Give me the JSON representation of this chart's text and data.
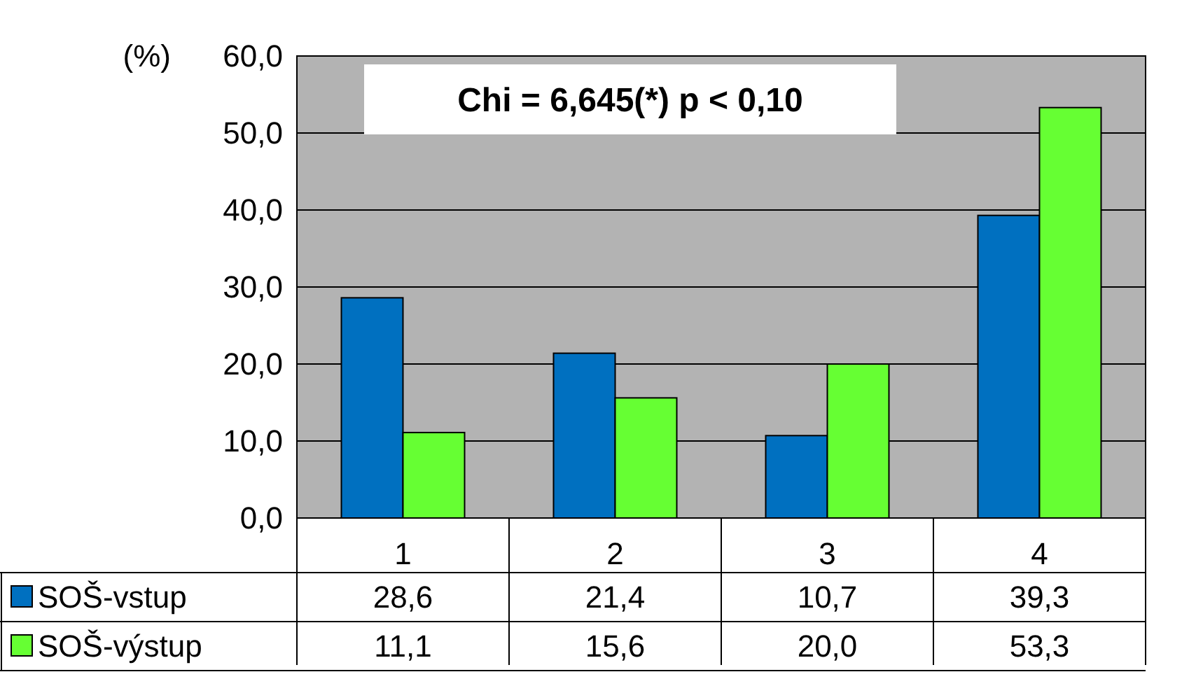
{
  "chart_data": {
    "type": "bar",
    "ylabel": "(%)",
    "categories": [
      "1",
      "2",
      "3",
      "4"
    ],
    "series": [
      {
        "name": "SOŠ-vstup",
        "color": "#0070c0",
        "values": [
          28.6,
          21.4,
          10.7,
          39.3
        ],
        "value_labels": [
          "28,6",
          "21,4",
          "10,7",
          "39,3"
        ]
      },
      {
        "name": "SOŠ-výstup",
        "color": "#66ff33",
        "values": [
          11.1,
          15.6,
          20.0,
          53.3
        ],
        "value_labels": [
          "11,1",
          "15,6",
          "20,0",
          "53,3"
        ]
      }
    ],
    "ylim": [
      0,
      60
    ],
    "yticks": [
      {
        "value": 0,
        "label": "0,0"
      },
      {
        "value": 10,
        "label": "10,0"
      },
      {
        "value": 20,
        "label": "20,0"
      },
      {
        "value": 30,
        "label": "30,0"
      },
      {
        "value": 40,
        "label": "40,0"
      },
      {
        "value": 50,
        "label": "50,0"
      },
      {
        "value": 60,
        "label": "60,0"
      }
    ],
    "annotations": [
      "Chi = 6,645(*) p < 0,10"
    ],
    "grid": "y",
    "legend": "bottom left"
  }
}
